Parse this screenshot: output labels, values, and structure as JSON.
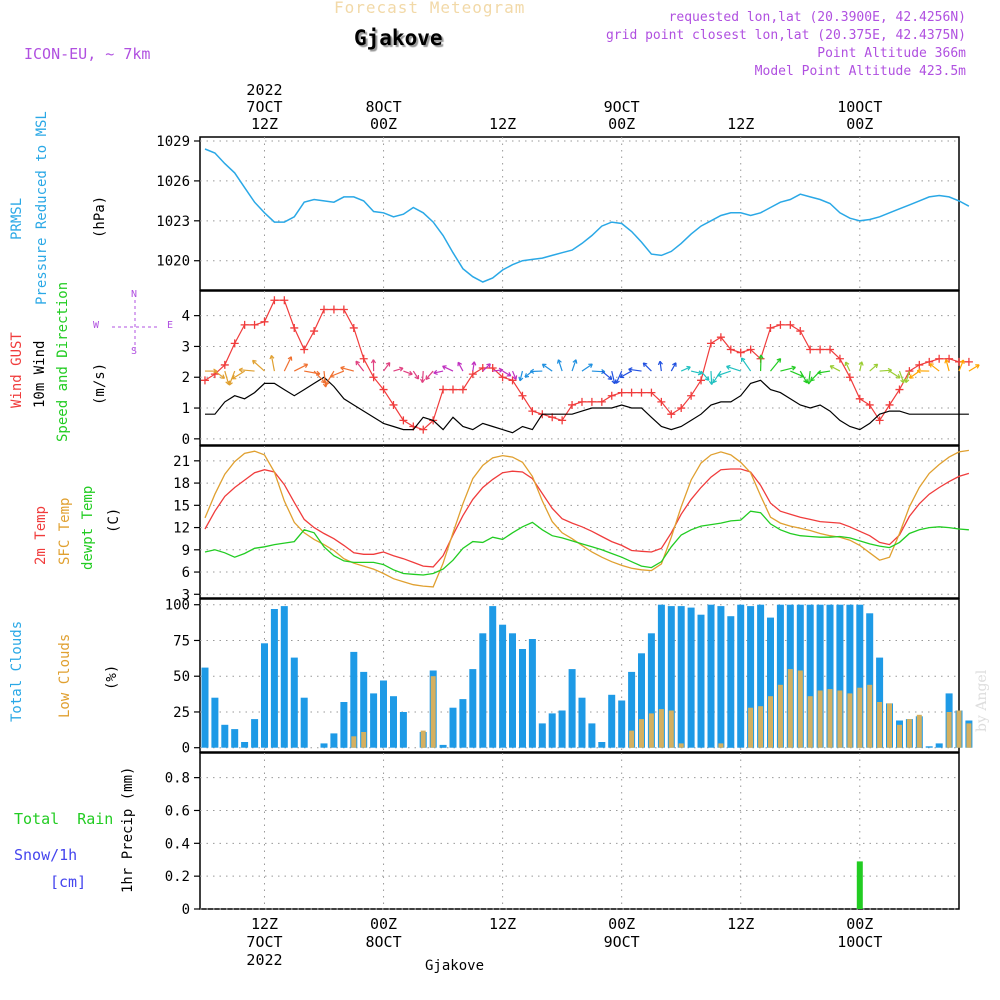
{
  "header": {
    "title": "Forecast Meteogram",
    "location": "Gjakove",
    "model": "ICON-EU, ~ 7km",
    "requested": "requested lon,lat (20.3900E, 42.4256N)",
    "grid": "grid point closest lon,lat (20.375E, 42.4375N)",
    "alt": "Point Altitude 366m",
    "model_alt": "Model Point Altitude 423.5m",
    "footer": "Gjakove",
    "credit": "by Angel"
  },
  "colors": {
    "pressure": "#2aa8e6",
    "gust": "#f03c3c",
    "wind": "#000000",
    "temp": "#f03c3c",
    "sfc": "#e0a030",
    "dew": "#22cc22",
    "total_clouds": "#1e9ae6",
    "low_clouds": "#d4b060",
    "rain": "#22cc22",
    "purple": "#b050e0"
  },
  "labels": {
    "p1a": "PRMSL",
    "p1b": "Pressure Reduced to MSL",
    "p1u": "(hPa)",
    "p2a": "Wind GUST",
    "p2b": "10m Wind",
    "p2c": "Speed and Direction",
    "p2u": "(m/s)",
    "p3a": "2m Temp",
    "p3b": "SFC Temp",
    "p3c": "dewpt Temp",
    "p3u": "(C)",
    "p4a": "Total Clouds",
    "p4b": "Low Clouds",
    "p4u": "(%)",
    "p5a": "Total  Rain",
    "p5b": "Snow/1h",
    "p5c": "[cm]",
    "p5u": "1hr Precip (mm)",
    "compass_n": "N",
    "compass_s": "S",
    "compass_w": "W",
    "compass_e": "E"
  },
  "time_axis": {
    "top": [
      {
        "h": 12,
        "lines": [
          "2022",
          "7OCT",
          "12Z"
        ]
      },
      {
        "h": 24,
        "lines": [
          "8OCT",
          "00Z"
        ]
      },
      {
        "h": 36,
        "lines": [
          "12Z"
        ]
      },
      {
        "h": 48,
        "lines": [
          "9OCT",
          "00Z"
        ]
      },
      {
        "h": 60,
        "lines": [
          "12Z"
        ]
      },
      {
        "h": 72,
        "lines": [
          "10OCT",
          "00Z"
        ]
      }
    ],
    "bottom": [
      {
        "h": 12,
        "lines": [
          "12Z",
          "7OCT",
          "2022"
        ]
      },
      {
        "h": 24,
        "lines": [
          "00Z",
          "8OCT"
        ]
      },
      {
        "h": 36,
        "lines": [
          "12Z"
        ]
      },
      {
        "h": 48,
        "lines": [
          "00Z",
          "9OCT"
        ]
      },
      {
        "h": 60,
        "lines": [
          "12Z"
        ]
      },
      {
        "h": 72,
        "lines": [
          "00Z",
          "10OCT"
        ]
      }
    ]
  },
  "chart_data": [
    {
      "type": "line",
      "title": "PRMSL Pressure Reduced to MSL",
      "ylabel": "(hPa)",
      "ylim": [
        1017.8,
        1029.3
      ],
      "yticks": [
        1020,
        1023,
        1026,
        1029
      ],
      "grid": true,
      "x_hours": [
        6,
        7,
        8,
        9,
        10,
        11,
        12,
        13,
        14,
        15,
        16,
        17,
        18,
        19,
        20,
        21,
        22,
        23,
        24,
        25,
        26,
        27,
        28,
        29,
        30,
        31,
        32,
        33,
        34,
        35,
        36,
        37,
        38,
        39,
        40,
        41,
        42,
        43,
        44,
        45,
        46,
        47,
        48,
        49,
        50,
        51,
        52,
        53,
        54,
        55,
        56,
        57,
        58,
        59,
        60,
        61,
        62,
        63,
        64,
        65,
        66,
        67,
        68,
        69,
        70,
        71,
        72,
        73,
        74,
        75,
        76,
        77,
        78,
        79,
        80,
        81,
        82,
        83
      ],
      "series": [
        {
          "values": [
            1028.4,
            1028.1,
            1027.3,
            1026.6,
            1025.5,
            1024.4,
            1023.6,
            1022.9,
            1022.9,
            1023.3,
            1024.4,
            1024.6,
            1024.5,
            1024.4,
            1024.8,
            1024.8,
            1024.5,
            1023.7,
            1023.6,
            1023.3,
            1023.5,
            1024.0,
            1023.6,
            1022.9,
            1021.9,
            1020.6,
            1019.4,
            1018.8,
            1018.4,
            1018.7,
            1019.3,
            1019.7,
            1020.0,
            1020.1,
            1020.2,
            1020.4,
            1020.6,
            1020.8,
            1021.3,
            1021.9,
            1022.6,
            1022.9,
            1022.8,
            1022.2,
            1021.4,
            1020.5,
            1020.4,
            1020.7,
            1021.3,
            1022.0,
            1022.6,
            1023.0,
            1023.4,
            1023.6,
            1023.6,
            1023.4,
            1023.6,
            1024.0,
            1024.4,
            1024.6,
            1025.0,
            1024.8,
            1024.6,
            1024.3,
            1023.6,
            1023.2,
            1023.0,
            1023.1,
            1023.3,
            1023.6,
            1023.9,
            1024.2,
            1024.5,
            1024.8,
            1024.9,
            1024.8,
            1024.5,
            1024.1
          ]
        }
      ]
    },
    {
      "type": "line",
      "title": "Wind GUST / 10m Wind Speed and Direction",
      "ylabel": "(m/s)",
      "ylim": [
        -0.2,
        4.8
      ],
      "yticks": [
        0,
        1,
        2,
        3,
        4
      ],
      "grid": true,
      "x_hours": [
        6,
        7,
        8,
        9,
        10,
        11,
        12,
        13,
        14,
        15,
        16,
        17,
        18,
        19,
        20,
        21,
        22,
        23,
        24,
        25,
        26,
        27,
        28,
        29,
        30,
        31,
        32,
        33,
        34,
        35,
        36,
        37,
        38,
        39,
        40,
        41,
        42,
        43,
        44,
        45,
        46,
        47,
        48,
        49,
        50,
        51,
        52,
        53,
        54,
        55,
        56,
        57,
        58,
        59,
        60,
        61,
        62,
        63,
        64,
        65,
        66,
        67,
        68,
        69,
        70,
        71,
        72,
        73,
        74,
        75,
        76,
        77,
        78,
        79,
        80,
        81,
        82,
        83
      ],
      "series": [
        {
          "name": "Wind GUST",
          "values": [
            1.9,
            2.1,
            2.4,
            3.1,
            3.7,
            3.7,
            3.8,
            4.5,
            4.5,
            3.6,
            2.9,
            3.5,
            4.2,
            4.2,
            4.2,
            3.6,
            2.6,
            2.0,
            1.6,
            1.1,
            0.6,
            0.4,
            0.3,
            0.6,
            1.6,
            1.6,
            1.6,
            2.1,
            2.3,
            2.3,
            2.0,
            1.9,
            1.4,
            0.9,
            0.8,
            0.7,
            0.6,
            1.1,
            1.2,
            1.2,
            1.2,
            1.4,
            1.5,
            1.5,
            1.5,
            1.5,
            1.2,
            0.8,
            1.0,
            1.4,
            1.9,
            3.1,
            3.3,
            2.9,
            2.8,
            2.9,
            2.6,
            3.6,
            3.7,
            3.7,
            3.5,
            2.9,
            2.9,
            2.9,
            2.6,
            2.0,
            1.3,
            1.1,
            0.6,
            1.1,
            1.6,
            2.2,
            2.4,
            2.5,
            2.6,
            2.6,
            2.5,
            2.5
          ]
        },
        {
          "name": "10m Wind",
          "values": [
            0.8,
            0.8,
            1.2,
            1.4,
            1.3,
            1.5,
            1.8,
            1.8,
            1.6,
            1.4,
            1.6,
            1.8,
            2.0,
            1.7,
            1.3,
            1.1,
            0.9,
            0.7,
            0.5,
            0.4,
            0.3,
            0.3,
            0.7,
            0.6,
            0.3,
            0.7,
            0.4,
            0.3,
            0.5,
            0.4,
            0.3,
            0.2,
            0.4,
            0.3,
            0.8,
            0.8,
            0.8,
            0.8,
            0.9,
            1.0,
            1.0,
            1.0,
            1.1,
            1.0,
            1.0,
            0.7,
            0.4,
            0.3,
            0.4,
            0.6,
            0.8,
            1.1,
            1.2,
            1.2,
            1.4,
            1.8,
            1.9,
            1.6,
            1.5,
            1.3,
            1.1,
            1.0,
            1.1,
            0.9,
            0.6,
            0.4,
            0.3,
            0.5,
            0.8,
            0.9,
            0.9,
            0.8,
            0.8,
            0.8,
            0.8,
            0.8,
            0.8,
            0.8
          ]
        }
      ]
    },
    {
      "type": "line",
      "title": "2m Temp / SFC Temp / dewpt Temp",
      "ylabel": "(C)",
      "ylim": [
        2.5,
        23.0
      ],
      "yticks": [
        3,
        6,
        9,
        12,
        15,
        18,
        21
      ],
      "grid": true,
      "x_hours": [
        6,
        7,
        8,
        9,
        10,
        11,
        12,
        13,
        14,
        15,
        16,
        17,
        18,
        19,
        20,
        21,
        22,
        23,
        24,
        25,
        26,
        27,
        28,
        29,
        30,
        31,
        32,
        33,
        34,
        35,
        36,
        37,
        38,
        39,
        40,
        41,
        42,
        43,
        44,
        45,
        46,
        47,
        48,
        49,
        50,
        51,
        52,
        53,
        54,
        55,
        56,
        57,
        58,
        59,
        60,
        61,
        62,
        63,
        64,
        65,
        66,
        67,
        68,
        69,
        70,
        71,
        72,
        73,
        74,
        75,
        76,
        77,
        78,
        79,
        80,
        81,
        82,
        83
      ],
      "series": [
        {
          "name": "2m Temp",
          "values": [
            11.8,
            14.2,
            16.2,
            17.4,
            18.4,
            19.4,
            19.8,
            19.5,
            17.8,
            15.4,
            13.1,
            12.0,
            11.2,
            10.5,
            9.6,
            8.6,
            8.4,
            8.4,
            8.7,
            8.2,
            7.8,
            7.3,
            6.8,
            6.7,
            8.2,
            11.0,
            13.6,
            15.8,
            17.4,
            18.5,
            19.4,
            19.6,
            19.5,
            18.6,
            16.6,
            14.6,
            13.2,
            12.6,
            12.1,
            11.5,
            10.8,
            10.1,
            9.6,
            8.9,
            8.8,
            8.7,
            9.2,
            11.3,
            13.8,
            15.8,
            17.4,
            18.8,
            19.8,
            19.9,
            19.9,
            19.5,
            17.7,
            15.3,
            14.2,
            13.8,
            13.4,
            13.1,
            12.8,
            12.7,
            12.6,
            12.1,
            11.5,
            10.9,
            10.0,
            9.7,
            11.0,
            13.5,
            15.2,
            16.5,
            17.4,
            18.2,
            18.9,
            19.3
          ]
        },
        {
          "name": "SFC Temp",
          "values": [
            13.3,
            16.5,
            19.2,
            20.9,
            22.0,
            22.3,
            21.8,
            19.5,
            15.6,
            12.7,
            11.3,
            10.4,
            9.7,
            8.9,
            7.8,
            7.2,
            6.8,
            6.4,
            5.8,
            5.1,
            4.7,
            4.3,
            4.1,
            4.0,
            7.2,
            11.3,
            15.2,
            18.6,
            20.4,
            21.4,
            21.7,
            21.5,
            20.8,
            18.9,
            15.6,
            12.8,
            11.3,
            10.5,
            9.6,
            8.7,
            8.0,
            7.4,
            6.9,
            6.5,
            6.3,
            6.2,
            7.1,
            10.7,
            14.8,
            18.4,
            20.7,
            21.8,
            22.2,
            21.8,
            20.8,
            19.4,
            16.3,
            13.4,
            12.6,
            12.2,
            11.9,
            11.6,
            11.2,
            10.9,
            10.7,
            10.3,
            9.6,
            8.6,
            7.6,
            8.0,
            11.2,
            14.8,
            17.4,
            19.3,
            20.5,
            21.5,
            22.2,
            22.4
          ]
        },
        {
          "name": "dewpt Temp",
          "values": [
            8.7,
            9.0,
            8.6,
            8.0,
            8.5,
            9.2,
            9.4,
            9.7,
            9.9,
            10.1,
            11.7,
            11.3,
            9.4,
            8.2,
            7.5,
            7.3,
            7.3,
            7.3,
            7.0,
            6.3,
            5.8,
            5.7,
            5.6,
            5.8,
            6.4,
            7.6,
            9.2,
            10.1,
            10.0,
            10.7,
            10.4,
            11.3,
            12.1,
            12.7,
            11.7,
            10.9,
            10.6,
            10.2,
            9.8,
            9.4,
            9.0,
            8.5,
            8.0,
            7.4,
            6.8,
            6.6,
            7.4,
            9.4,
            11.0,
            11.7,
            12.2,
            12.4,
            12.6,
            12.9,
            13.0,
            14.2,
            14.0,
            12.5,
            11.7,
            11.2,
            10.9,
            10.8,
            10.7,
            10.7,
            10.8,
            10.6,
            10.2,
            9.8,
            9.5,
            9.3,
            10.0,
            11.2,
            11.7,
            12.0,
            12.1,
            12.0,
            11.8,
            11.7
          ]
        }
      ]
    },
    {
      "type": "bar",
      "title": "Total Clouds / Low Clouds",
      "ylabel": "(%)",
      "ylim": [
        -3,
        104
      ],
      "yticks": [
        0,
        25,
        50,
        75,
        100
      ],
      "grid": true,
      "x_hours": [
        6,
        7,
        8,
        9,
        10,
        11,
        12,
        13,
        14,
        15,
        16,
        17,
        18,
        19,
        20,
        21,
        22,
        23,
        24,
        25,
        26,
        27,
        28,
        29,
        30,
        31,
        32,
        33,
        34,
        35,
        36,
        37,
        38,
        39,
        40,
        41,
        42,
        43,
        44,
        45,
        46,
        47,
        48,
        49,
        50,
        51,
        52,
        53,
        54,
        55,
        56,
        57,
        58,
        59,
        60,
        61,
        62,
        63,
        64,
        65,
        66,
        67,
        68,
        69,
        70,
        71,
        72,
        73,
        74,
        75,
        76,
        77,
        78,
        79,
        80,
        81,
        82,
        83
      ],
      "series": [
        {
          "name": "Total Clouds",
          "values": [
            56,
            35,
            16,
            13,
            4,
            20,
            73,
            97,
            99,
            63,
            35,
            0,
            3,
            10,
            32,
            67,
            53,
            38,
            47,
            36,
            25,
            0,
            11,
            54,
            2,
            28,
            34,
            55,
            80,
            99,
            86,
            80,
            69,
            76,
            17,
            24,
            26,
            55,
            35,
            17,
            4,
            37,
            33,
            53,
            66,
            80,
            100,
            99,
            99,
            98,
            93,
            100,
            99,
            92,
            100,
            99,
            100,
            91,
            100,
            100,
            100,
            100,
            100,
            100,
            100,
            100,
            100,
            94,
            63,
            31,
            19,
            20,
            22,
            1,
            3,
            38,
            26,
            19
          ]
        },
        {
          "name": "Low Clouds",
          "values": [
            0,
            0,
            0,
            0,
            0,
            0,
            0,
            0,
            0,
            0,
            0,
            0,
            0,
            0,
            0,
            8,
            11,
            0,
            0,
            0,
            0,
            0,
            12,
            50,
            0,
            0,
            0,
            0,
            0,
            0,
            0,
            0,
            0,
            0,
            0,
            0,
            0,
            0,
            0,
            0,
            0,
            0,
            0,
            12,
            20,
            24,
            27,
            26,
            3,
            0,
            0,
            0,
            3,
            0,
            0,
            28,
            29,
            36,
            44,
            55,
            54,
            36,
            40,
            41,
            40,
            38,
            42,
            44,
            32,
            31,
            16,
            20,
            23,
            0,
            0,
            25,
            26,
            17
          ]
        }
      ]
    },
    {
      "type": "bar",
      "title": "Total Rain / Snow/1h",
      "ylabel": "1hr Precip (mm)",
      "ylim": [
        0,
        0.95
      ],
      "yticks": [
        0,
        0.2,
        0.4,
        0.6,
        0.8
      ],
      "grid": true,
      "x_hours": [
        72
      ],
      "series": [
        {
          "name": "Total Rain",
          "values": [
            0.29
          ]
        }
      ]
    }
  ]
}
